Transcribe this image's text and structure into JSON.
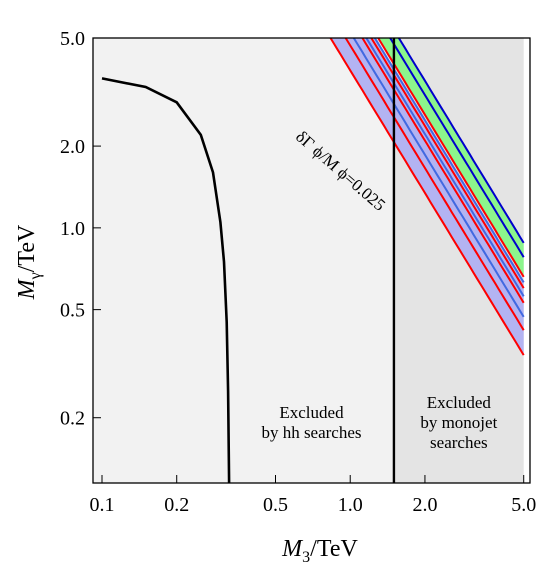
{
  "chart_data": {
    "type": "line",
    "log_x": true,
    "log_y": true,
    "xlim": [
      0.092,
      5.3
    ],
    "ylim": [
      0.115,
      5.0
    ],
    "grid": false,
    "x_axis": {
      "title_main": "M",
      "title_sub": "3",
      "title_unit": "/TeV",
      "ticks": [
        {
          "value": 0.1,
          "label": "0.1"
        },
        {
          "value": 0.2,
          "label": "0.2"
        },
        {
          "value": 0.5,
          "label": "0.5"
        },
        {
          "value": 1.0,
          "label": "1.0"
        },
        {
          "value": 2.0,
          "label": "2.0"
        },
        {
          "value": 5.0,
          "label": "5.0"
        }
      ]
    },
    "y_axis": {
      "title_main": "M",
      "title_sub": "γ",
      "title_unit": "/TeV",
      "ticks": [
        {
          "value": 0.2,
          "label": "0.2"
        },
        {
          "value": 0.5,
          "label": "0.5"
        },
        {
          "value": 1.0,
          "label": "1.0"
        },
        {
          "value": 2.0,
          "label": "2.0"
        },
        {
          "value": 5.0,
          "label": "5.0"
        }
      ]
    },
    "regions": [
      {
        "name": "Excluded by hh searches",
        "x_min": 0.092,
        "x_max": 1.5,
        "color": "#f2f2f2",
        "label_lines": [
          "Excluded",
          "by hh searches"
        ]
      },
      {
        "name": "Excluded by monojet searches",
        "x_min": 1.5,
        "x_max": 5.0,
        "color": "#e4e4e4",
        "label_lines": [
          "Excluded",
          "by monojet",
          "searches"
        ]
      }
    ],
    "boundary_curve": {
      "color": "#000000",
      "x": [
        0.1,
        0.15,
        0.2,
        0.25,
        0.28,
        0.3,
        0.31,
        0.318,
        0.322,
        0.325
      ],
      "y": [
        3.55,
        3.3,
        2.9,
        2.2,
        1.6,
        1.05,
        0.75,
        0.45,
        0.25,
        0.115
      ]
    },
    "vertical_line": {
      "x": 1.5,
      "color": "#000000"
    },
    "bands": [
      {
        "color": "#b3b3f2",
        "outer_lower_series": 0,
        "outer_upper_series": 6
      },
      {
        "color": "#8cf58c",
        "outer_lower_series": 7,
        "outer_upper_series": 9
      }
    ],
    "series": [
      {
        "color": "#ff0000",
        "y_at_5": 0.34
      },
      {
        "color": "#ff0000",
        "y_at_5": 0.42
      },
      {
        "color": "#4169e1",
        "y_at_5": 0.47
      },
      {
        "color": "#ff0000",
        "y_at_5": 0.53
      },
      {
        "color": "#4169e1",
        "y_at_5": 0.56
      },
      {
        "color": "#ff0000",
        "y_at_5": 0.6
      },
      {
        "color": "#4169e1",
        "y_at_5": 0.63
      },
      {
        "color": "#ff0000",
        "y_at_5": 0.66
      },
      {
        "color": "#0000cd",
        "y_at_5": 0.78
      },
      {
        "color": "#0000cd",
        "y_at_5": 0.88
      }
    ],
    "annotation": {
      "text": "δΓ ϕ/M ϕ=0.025",
      "x": 0.96,
      "y": 1.55
    }
  }
}
